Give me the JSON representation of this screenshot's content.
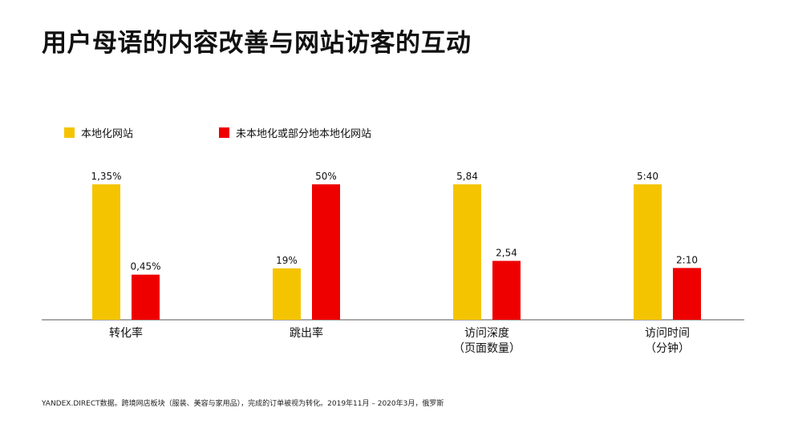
{
  "title": "用户母语的内容改善与网站访客的互动",
  "footnote": "YANDEX.DIRECT数据。跨境网店板块（服装、美容与家用品），完成的订单被视为转化。2019年11月 – 2020年3月，俄罗斯",
  "chart_data": {
    "type": "bar",
    "title": "用户母语的内容改善与网站访客的互动",
    "legend_position": "top-left",
    "grid": false,
    "categories": [
      {
        "line1": "转化率",
        "line2": ""
      },
      {
        "line1": "跳出率",
        "line2": ""
      },
      {
        "line1": "访问深度",
        "line2": "（页面数量）"
      },
      {
        "line1": "访问时间",
        "line2": "（分钟）"
      }
    ],
    "series": [
      {
        "name": "本地化网站",
        "color": "#F5C400",
        "values": [
          1.35,
          19,
          5.84,
          5.667
        ],
        "labels": [
          "1,35%",
          "19%",
          "5,84",
          "5:40"
        ]
      },
      {
        "name": "未本地化或部分地本地化网站",
        "color": "#EE0000",
        "values": [
          0.45,
          50,
          2.54,
          2.167
        ],
        "labels": [
          "0,45%",
          "50%",
          "2,54",
          "2:10"
        ]
      }
    ],
    "note": "Each category uses its own scale; bar heights are relative within a category."
  }
}
